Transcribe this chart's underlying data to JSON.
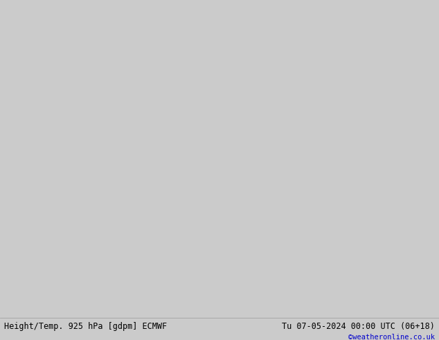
{
  "title_left": "Height/Temp. 925 hPa [gdpm] ECMWF",
  "title_right": "Tu 07-05-2024 00:00 UTC (06+18)",
  "credit": "©weatheronline.co.uk",
  "bg_color": "#cbcbcb",
  "land_color": "#aae8aa",
  "ocean_color": "#cbcbcb",
  "coast_color": "#888888",
  "figsize": [
    6.34,
    4.9
  ],
  "dpi": 100,
  "extent": [
    93,
    182,
    -57,
    12
  ],
  "contour_colors": {
    "black": "#000000",
    "red": "#dd0000",
    "orange": "#ff8800",
    "green": "#55cc00",
    "cyan": "#00cccc"
  },
  "footer_bg": "#e8e8e8",
  "footer_color": "#000000",
  "credit_color": "#0000cc"
}
